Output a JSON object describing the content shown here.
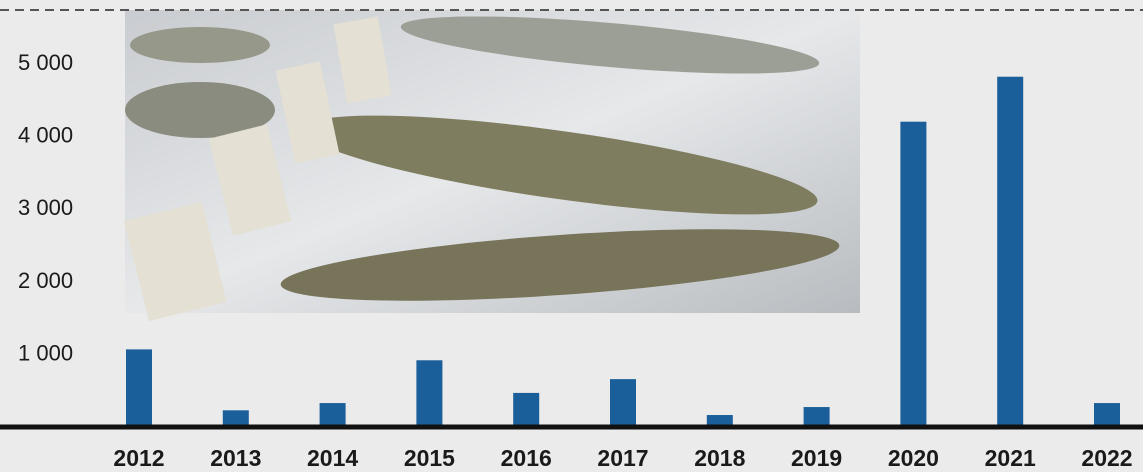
{
  "chart_data": {
    "type": "bar",
    "categories": [
      "2012",
      "2013",
      "2014",
      "2015",
      "2016",
      "2017",
      "2018",
      "2019",
      "2020",
      "2021",
      "2022"
    ],
    "values": [
      1070,
      230,
      330,
      920,
      470,
      660,
      165,
      275,
      4210,
      4830,
      330
    ],
    "color": "#1a5e9a",
    "ylim": [
      0,
      5750
    ],
    "yticks": [
      {
        "value": 1000,
        "label": "1 000"
      },
      {
        "value": 2000,
        "label": "2 000"
      },
      {
        "value": 3000,
        "label": "3 000"
      },
      {
        "value": 4000,
        "label": "4 000"
      },
      {
        "value": 5000,
        "label": "5 000"
      }
    ],
    "grid": false
  }
}
